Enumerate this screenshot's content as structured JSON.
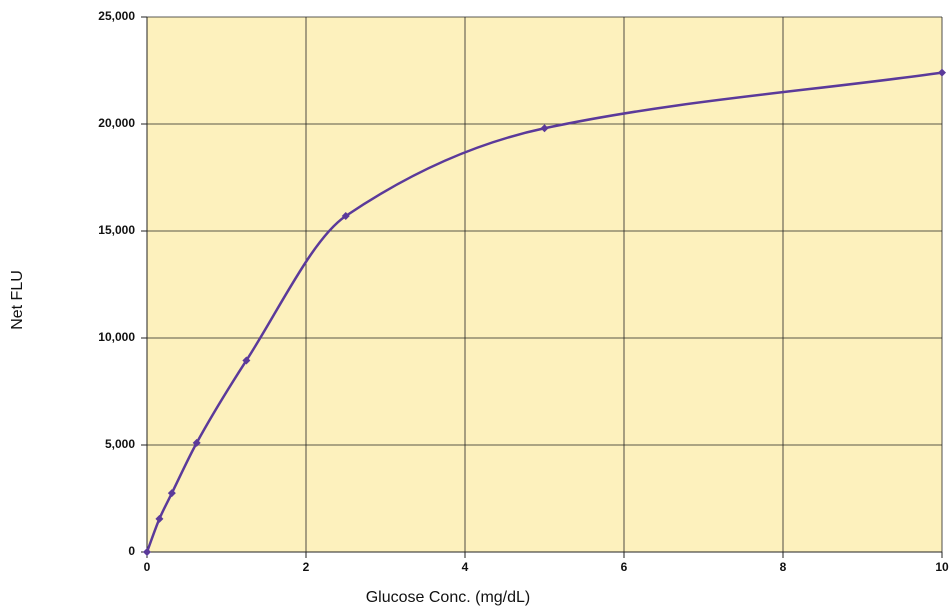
{
  "chart_data": {
    "type": "line",
    "x": [
      0,
      0.156,
      0.3125,
      0.625,
      1.25,
      2.5,
      5,
      10
    ],
    "series": [
      {
        "color": "#5b3a9a",
        "values": [
          0,
          1550,
          2750,
          5100,
          8950,
          15700,
          19800,
          22400
        ]
      }
    ],
    "xlabel": "Glucose Conc. (mg/dL)",
    "ylabel": "Net FLU",
    "xlim": [
      0,
      10
    ],
    "xticks": [
      0,
      2,
      4,
      6,
      8,
      10
    ],
    "ylim": [
      0,
      25000
    ],
    "yticks": [
      0,
      {
        "value": 5000,
        "label": "5,000"
      },
      {
        "value": 10000,
        "label": "10,000"
      },
      {
        "value": 15000,
        "label": "15,000"
      },
      {
        "value": 20000,
        "label": "20,000"
      },
      {
        "value": 25000,
        "label": "25,000"
      }
    ],
    "grid": true,
    "background": "#fdf1bd"
  }
}
